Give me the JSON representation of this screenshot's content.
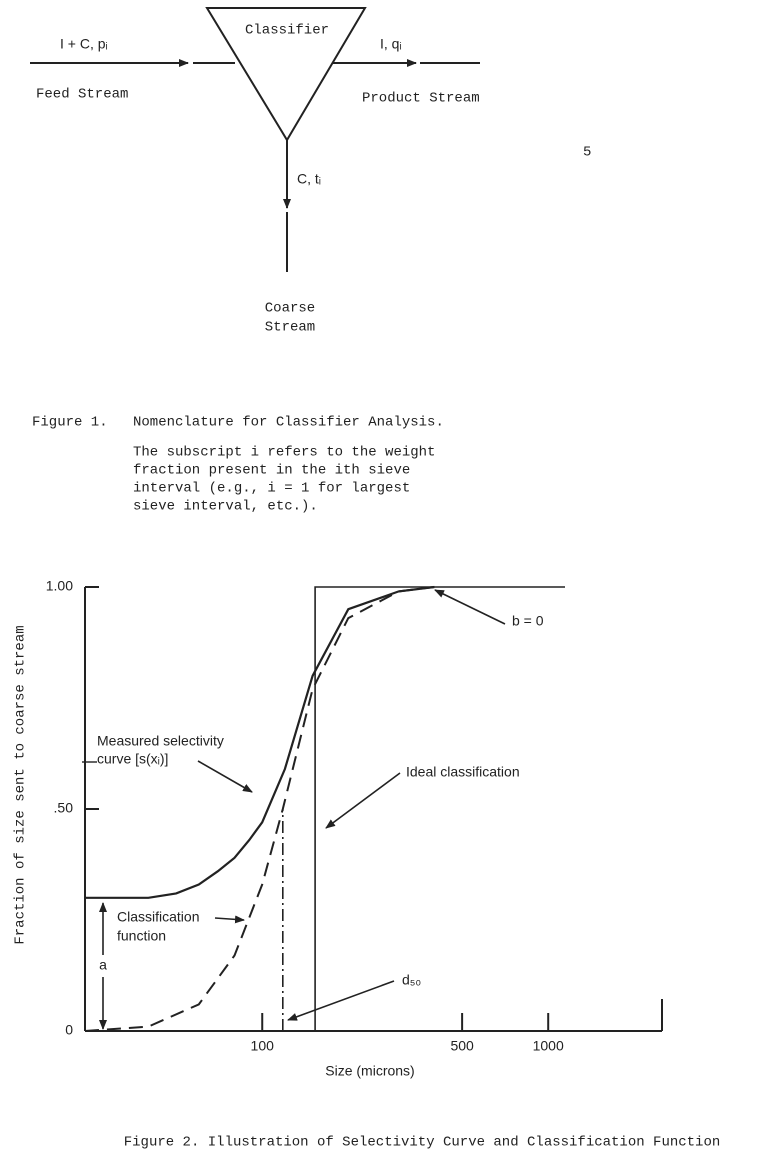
{
  "page_number": "5",
  "figure1": {
    "classifier": "Classifier",
    "feed_symbol": "I + C, pᵢ",
    "feed_stream": "Feed Stream",
    "product_symbol": "I, qᵢ",
    "product_stream": "Product Stream",
    "coarse_symbol": "C, tᵢ",
    "coarse_stream": [
      "Coarse",
      "Stream"
    ],
    "caption_label": "Figure 1.",
    "caption_title": "Nomenclature for Classifier Analysis.",
    "caption_note": [
      "The subscript i refers to the weight",
      "fraction present in the ith sieve",
      "interval (e.g., i = 1 for largest",
      "sieve interval, etc.)."
    ]
  },
  "chart_data": {
    "type": "line",
    "caption": "Figure 2.  Illustration of Selectivity Curve and Classification Function",
    "x_label": "Size (microns)",
    "y_label": "Fraction of size sent to coarse stream",
    "x_log": true,
    "xlim": [
      24,
      2500
    ],
    "ylim": [
      0,
      1
    ],
    "xticks": [
      100,
      500,
      1000
    ],
    "yticks": [
      {
        "value": 0,
        "label": "0"
      },
      {
        "value": 0.5,
        "label": ".50"
      },
      {
        "value": 1,
        "label": "1.00"
      }
    ],
    "series": [
      {
        "color": "#222222",
        "line_style": "solid",
        "x": [
          24,
          40,
          50,
          60,
          70,
          80,
          90,
          100,
          120,
          150,
          200,
          300,
          400
        ],
        "values": [
          0.3,
          0.3,
          0.31,
          0.33,
          0.36,
          0.39,
          0.43,
          0.47,
          0.59,
          0.8,
          0.95,
          0.99,
          1.0
        ]
      },
      {
        "color": "#222222",
        "line_style": "dashed",
        "x": [
          24,
          40,
          60,
          80,
          100,
          118,
          150,
          200,
          300,
          400
        ],
        "values": [
          0,
          0.01,
          0.06,
          0.17,
          0.33,
          0.5,
          0.77,
          0.93,
          0.99,
          1.0
        ]
      },
      {
        "color": "#222222",
        "line_style": "thin",
        "x": [
          153,
          153,
          1145
        ],
        "values": [
          0,
          1,
          1
        ]
      },
      {
        "color": "#222222",
        "line_style": "dashdot",
        "x": [
          118,
          118
        ],
        "values": [
          0,
          0.5
        ]
      }
    ],
    "annotations": [
      "Measured selectivity",
      "curve [s(xᵢ)]",
      "b = 0",
      "Ideal classification",
      "Classification",
      "function",
      "d₅₀",
      "a"
    ]
  }
}
